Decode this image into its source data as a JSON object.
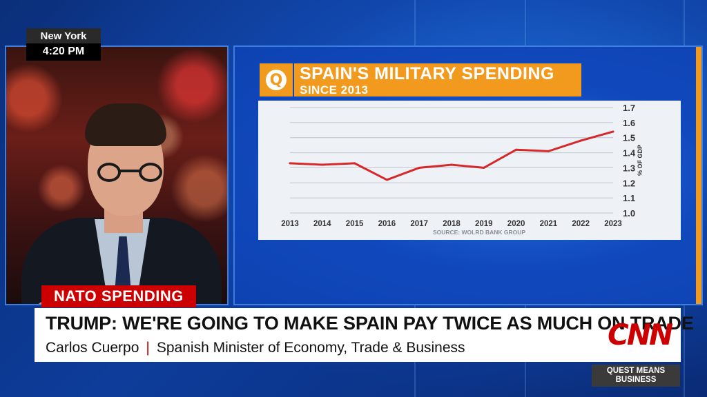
{
  "clock": {
    "city": "New York",
    "time": "4:20 PM"
  },
  "graphic": {
    "logo_letter": "Q",
    "title": "SPAIN'S MILITARY SPENDING",
    "subtitle": "SINCE 2013",
    "source": "SOURCE: WOLRD BANK GROUP"
  },
  "chart_data": {
    "type": "line",
    "title": "SPAIN'S MILITARY SPENDING",
    "subtitle": "SINCE 2013",
    "x": [
      2013,
      2014,
      2015,
      2016,
      2017,
      2018,
      2019,
      2020,
      2021,
      2022,
      2023
    ],
    "series": [
      {
        "values": [
          1.33,
          1.32,
          1.33,
          1.22,
          1.3,
          1.32,
          1.3,
          1.42,
          1.41,
          1.48,
          1.54
        ],
        "color": "#d62828"
      }
    ],
    "ylabel": "% OF GDP",
    "yticks": [
      "1.0",
      "1.1",
      "1.2",
      "1.3",
      "1.4",
      "1.5",
      "1.6",
      "1.7"
    ],
    "ylim": [
      1.0,
      1.7
    ],
    "grid": true,
    "source": "SOURCE: WOLRD BANK GROUP"
  },
  "lower_third": {
    "tag": "NATO SPENDING",
    "headline": "TRUMP: WE'RE GOING TO MAKE SPAIN PAY TWICE AS MUCH ON TRADE",
    "name": "Carlos Cuerpo",
    "separator": "|",
    "role": "Spanish Minister of Economy, Trade & Business",
    "network": "CNN",
    "show_line1": "QUEST MEANS",
    "show_line2": "BUSINESS"
  },
  "colors": {
    "accent": "#f29a1e",
    "brand_red": "#cc0000",
    "line": "#d62828"
  }
}
